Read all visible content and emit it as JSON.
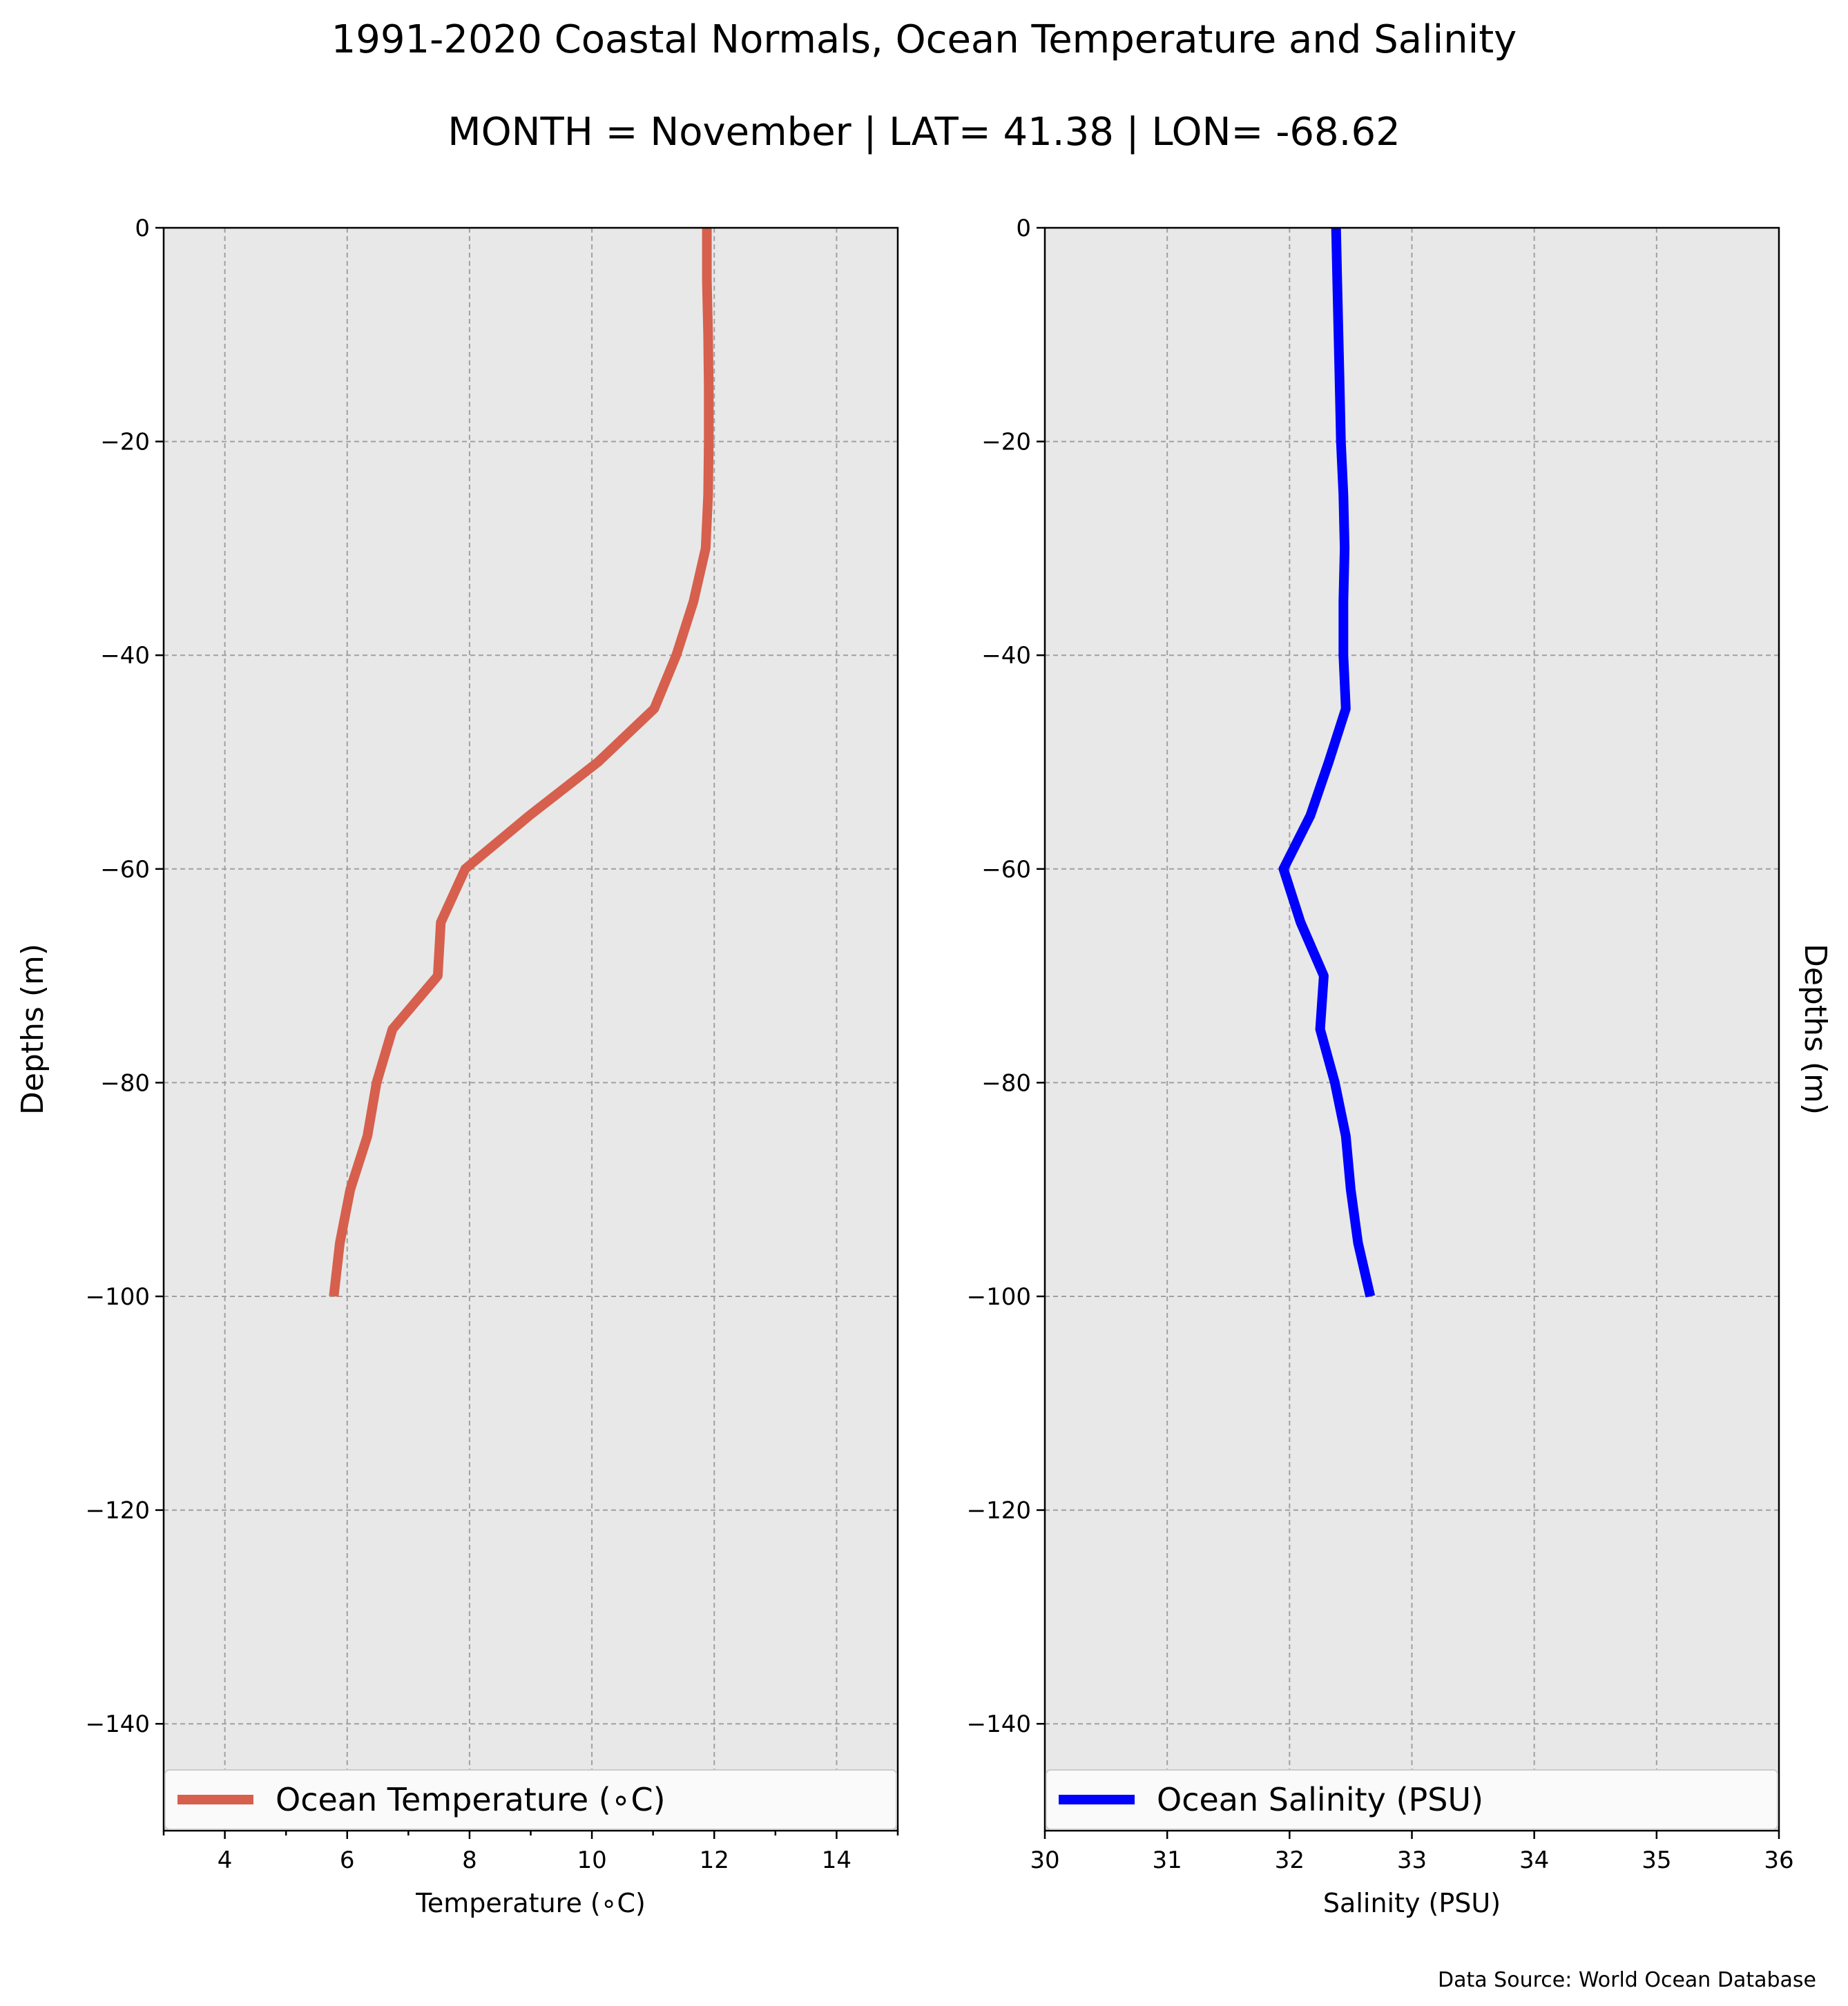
{
  "title": "1991-2020 Coastal Normals, Ocean Temperature and Salinity",
  "subtitle": "MONTH = November | LAT= 41.38 | LON= -68.62",
  "source_note": "Data Source: World Ocean Database",
  "chart_data": [
    {
      "type": "line",
      "xlabel": "Temperature (∘C)",
      "ylabel": "Depths (m)",
      "ylabel_side": "left",
      "xlim": [
        3,
        15
      ],
      "ylim": [
        -150,
        0
      ],
      "xticks": [
        4,
        6,
        8,
        10,
        12,
        14
      ],
      "xticks_minor": [
        3,
        5,
        7,
        9,
        11,
        13,
        15
      ],
      "yticks": [
        0,
        -20,
        -40,
        -60,
        -80,
        -100,
        -120,
        -140
      ],
      "ytick_labels": [
        "0",
        "−20",
        "−40",
        "−60",
        "−80",
        "−100",
        "−120",
        "−140"
      ],
      "grid": true,
      "legend_position": "bottom",
      "background": "#e8e8e8",
      "series": [
        {
          "name": "Ocean Temperature (∘C)",
          "color": "#d6604d",
          "x": [
            11.88,
            11.88,
            11.9,
            11.91,
            11.91,
            11.9,
            11.86,
            11.66,
            11.38,
            11.02,
            10.1,
            8.98,
            7.93,
            7.53,
            7.48,
            6.74,
            6.48,
            6.33,
            6.05,
            5.88,
            5.78
          ],
          "y": [
            0,
            -5,
            -10,
            -15,
            -20,
            -25,
            -30,
            -35,
            -40,
            -45,
            -50,
            -55,
            -60,
            -65,
            -70,
            -75,
            -80,
            -85,
            -90,
            -95,
            -100
          ]
        }
      ]
    },
    {
      "type": "line",
      "xlabel": "Salinity (PSU)",
      "ylabel": "Depths (m)",
      "ylabel_side": "right",
      "xlim": [
        30,
        36
      ],
      "ylim": [
        -150,
        0
      ],
      "xticks": [
        30,
        31,
        32,
        33,
        34,
        35,
        36
      ],
      "yticks": [
        0,
        -20,
        -40,
        -60,
        -80,
        -100,
        -120,
        -140
      ],
      "ytick_labels": [
        "0",
        "−20",
        "−40",
        "−60",
        "−80",
        "−100",
        "−120",
        "−140"
      ],
      "grid": true,
      "legend_position": "bottom",
      "background": "#e8e8e8",
      "series": [
        {
          "name": "Ocean Salinity (PSU)",
          "color": "#0000ff",
          "x": [
            32.38,
            32.39,
            32.4,
            32.41,
            32.42,
            32.44,
            32.45,
            32.44,
            32.44,
            32.46,
            32.32,
            32.17,
            31.95,
            32.09,
            32.28,
            32.25,
            32.37,
            32.46,
            32.5,
            32.56,
            32.66
          ],
          "y": [
            0,
            -5,
            -10,
            -15,
            -20,
            -25,
            -30,
            -35,
            -40,
            -45,
            -50,
            -55,
            -60,
            -65,
            -70,
            -75,
            -80,
            -85,
            -90,
            -95,
            -100
          ]
        }
      ]
    }
  ]
}
